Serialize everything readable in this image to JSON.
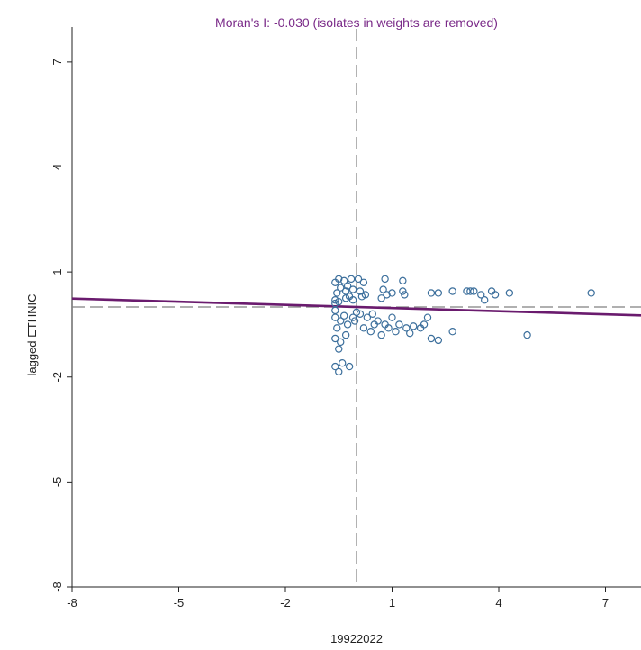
{
  "chart_data": {
    "type": "scatter",
    "title": "Moran's I: -0.030 (isolates in weights are removed)",
    "xlabel": "19922022",
    "ylabel": "lagged ETHNIC",
    "xlim": [
      -8,
      8
    ],
    "ylim": [
      -8,
      8
    ],
    "x_ticks": [
      -8,
      -5,
      -2,
      1,
      4,
      7
    ],
    "y_ticks": [
      -8,
      -5,
      -2,
      1,
      4,
      7
    ],
    "x_tick_labels": [
      "-8",
      "-5",
      "-2",
      "1",
      "4",
      "7"
    ],
    "y_tick_labels": [
      "-8",
      "-5",
      "-2",
      "1",
      "4",
      "7"
    ],
    "mean_lines": {
      "x": 0,
      "y": 0
    },
    "regression_line": {
      "slope": -0.03,
      "intercept": 0
    },
    "colors": {
      "title": "#7a2a88",
      "points": "#3c6f9c",
      "regression": "#6a1b6e",
      "mean_lines": "#808080",
      "axis": "#222222"
    },
    "points": [
      [
        -0.6,
        0.7
      ],
      [
        -0.55,
        0.4
      ],
      [
        -0.6,
        0.2
      ],
      [
        -0.5,
        0.8
      ],
      [
        -0.45,
        0.55
      ],
      [
        -0.6,
        0.1
      ],
      [
        -0.35,
        0.75
      ],
      [
        -0.3,
        0.45
      ],
      [
        -0.25,
        0.6
      ],
      [
        -0.15,
        0.8
      ],
      [
        -0.2,
        0.3
      ],
      [
        -0.1,
        0.5
      ],
      [
        0.05,
        0.8
      ],
      [
        0.1,
        0.45
      ],
      [
        0.2,
        0.7
      ],
      [
        0.25,
        0.35
      ],
      [
        -0.5,
        0.15
      ],
      [
        -0.3,
        0.25
      ],
      [
        0.15,
        0.3
      ],
      [
        -0.1,
        0.2
      ],
      [
        0.8,
        0.8
      ],
      [
        0.7,
        0.25
      ],
      [
        0.85,
        0.35
      ],
      [
        1.0,
        0.4
      ],
      [
        1.3,
        0.75
      ],
      [
        1.3,
        0.45
      ],
      [
        1.35,
        0.35
      ],
      [
        2.1,
        0.4
      ],
      [
        2.3,
        0.4
      ],
      [
        2.7,
        0.45
      ],
      [
        3.1,
        0.45
      ],
      [
        3.3,
        0.45
      ],
      [
        3.5,
        0.35
      ],
      [
        3.8,
        0.45
      ],
      [
        3.6,
        0.2
      ],
      [
        3.9,
        0.35
      ],
      [
        4.3,
        0.4
      ],
      [
        6.6,
        0.4
      ],
      [
        3.2,
        0.45
      ],
      [
        0.75,
        0.5
      ],
      [
        -0.6,
        -0.3
      ],
      [
        -0.55,
        -0.6
      ],
      [
        -0.6,
        -0.9
      ],
      [
        -0.5,
        -1.2
      ],
      [
        -0.45,
        -0.4
      ],
      [
        -0.6,
        -1.7
      ],
      [
        -0.5,
        -1.85
      ],
      [
        -0.4,
        -1.6
      ],
      [
        -0.3,
        -0.8
      ],
      [
        -0.2,
        -1.7
      ],
      [
        -0.6,
        -0.1
      ],
      [
        -0.35,
        -0.25
      ],
      [
        -0.25,
        -0.5
      ],
      [
        -0.1,
        -0.3
      ],
      [
        -0.05,
        -0.4
      ],
      [
        0.1,
        -0.2
      ],
      [
        0.2,
        -0.6
      ],
      [
        0.3,
        -0.3
      ],
      [
        0.4,
        -0.7
      ],
      [
        0.5,
        -0.5
      ],
      [
        0.6,
        -0.4
      ],
      [
        0.7,
        -0.8
      ],
      [
        0.8,
        -0.5
      ],
      [
        0.9,
        -0.6
      ],
      [
        1.0,
        -0.3
      ],
      [
        1.1,
        -0.7
      ],
      [
        1.2,
        -0.5
      ],
      [
        1.4,
        -0.6
      ],
      [
        1.5,
        -0.75
      ],
      [
        1.6,
        -0.55
      ],
      [
        1.8,
        -0.6
      ],
      [
        1.9,
        -0.5
      ],
      [
        2.0,
        -0.3
      ],
      [
        2.1,
        -0.9
      ],
      [
        2.3,
        -0.95
      ],
      [
        2.7,
        -0.7
      ],
      [
        4.8,
        -0.8
      ],
      [
        -0.45,
        -1.0
      ],
      [
        0.0,
        -0.15
      ],
      [
        0.45,
        -0.2
      ]
    ]
  }
}
